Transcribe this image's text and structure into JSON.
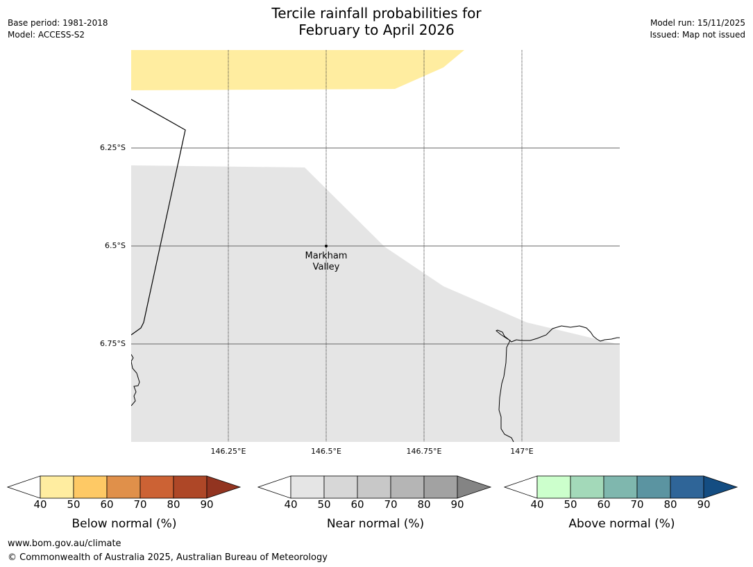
{
  "title": {
    "line1": "Tercile rainfall probabilities for",
    "line2": "February to April 2026"
  },
  "meta": {
    "base_period": "Base period: 1981-2018",
    "model": "Model: ACCESS-S2",
    "model_run": "Model run: 15/11/2025",
    "issued": "Issued: Map not issued"
  },
  "map": {
    "latitude_labels": [
      "6.25°S",
      "6.5°S",
      "6.75°S"
    ],
    "longitude_labels": [
      "146.25°E",
      "146.5°E",
      "146.75°E",
      "147°E"
    ],
    "place": {
      "name_line1": "Markham",
      "name_line2": "Valley"
    },
    "colors": {
      "below_40_50": "#ffeda0",
      "near_40_50": "#e5e5e5",
      "coastline": "#000000",
      "gridline": "#555555"
    }
  },
  "colorbars": [
    {
      "id": "below",
      "title": "Below normal (%)",
      "ticks": [
        "40",
        "50",
        "60",
        "70",
        "80",
        "90"
      ],
      "colors": [
        "#ffeda0",
        "#fec965",
        "#e0904a",
        "#cc6234",
        "#ae4727",
        "#923420"
      ]
    },
    {
      "id": "near",
      "title": "Near normal (%)",
      "ticks": [
        "40",
        "50",
        "60",
        "70",
        "80",
        "90"
      ],
      "colors": [
        "#e5e5e5",
        "#d7d7d7",
        "#c8c8c8",
        "#b5b5b5",
        "#a2a2a2",
        "#848484"
      ]
    },
    {
      "id": "above",
      "title": "Above normal (%)",
      "ticks": [
        "40",
        "50",
        "60",
        "70",
        "80",
        "90"
      ],
      "colors": [
        "#ccffcc",
        "#a3d9b9",
        "#7fb7ae",
        "#5b94a1",
        "#2f6598",
        "#144d82"
      ]
    }
  ],
  "footer": {
    "url": "www.bom.gov.au/climate",
    "copyright": "© Commonwealth of Australia 2025, Australian Bureau of Meteorology"
  }
}
